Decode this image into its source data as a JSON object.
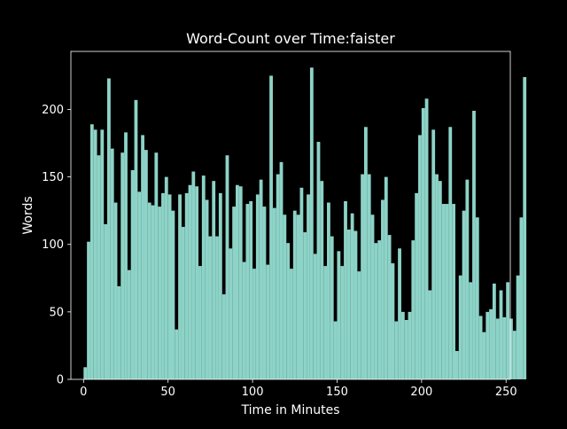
{
  "chart_data": {
    "type": "bar",
    "title": "Word-Count over Time:faister",
    "xlabel": "Time in Minutes",
    "ylabel": "Words",
    "xlim": [
      -7.5,
      252.5
    ],
    "ylim": [
      0,
      243
    ],
    "xticks": [
      0,
      50,
      100,
      150,
      200,
      250
    ],
    "yticks": [
      0,
      50,
      100,
      150,
      200
    ],
    "bar_color": "#8dd3c7",
    "background_color": "#000000",
    "axes_color": "#ffffff",
    "grid": false,
    "legend": "none",
    "x_start": 0,
    "x_step": 2,
    "values": [
      9,
      102,
      189,
      185,
      166,
      185,
      115,
      223,
      171,
      131,
      69,
      168,
      183,
      81,
      155,
      207,
      139,
      181,
      170,
      131,
      129,
      168,
      128,
      138,
      150,
      137,
      125,
      37,
      137,
      113,
      138,
      144,
      154,
      143,
      84,
      151,
      133,
      106,
      147,
      106,
      138,
      63,
      166,
      97,
      128,
      144,
      143,
      87,
      130,
      132,
      82,
      137,
      148,
      128,
      85,
      225,
      127,
      152,
      161,
      122,
      101,
      82,
      125,
      122,
      142,
      109,
      137,
      231,
      93,
      176,
      147,
      84,
      131,
      106,
      43,
      95,
      84,
      132,
      111,
      123,
      110,
      80,
      152,
      187,
      152,
      122,
      101,
      103,
      133,
      150,
      107,
      86,
      43,
      97,
      50,
      44,
      50,
      103,
      138,
      181,
      201,
      208,
      66,
      185,
      152,
      147,
      130,
      130,
      187,
      130,
      21,
      77,
      125,
      148,
      72,
      199,
      120,
      47,
      35,
      50,
      52,
      71,
      45,
      66,
      46,
      72,
      45,
      36,
      77,
      120,
      224
    ]
  }
}
